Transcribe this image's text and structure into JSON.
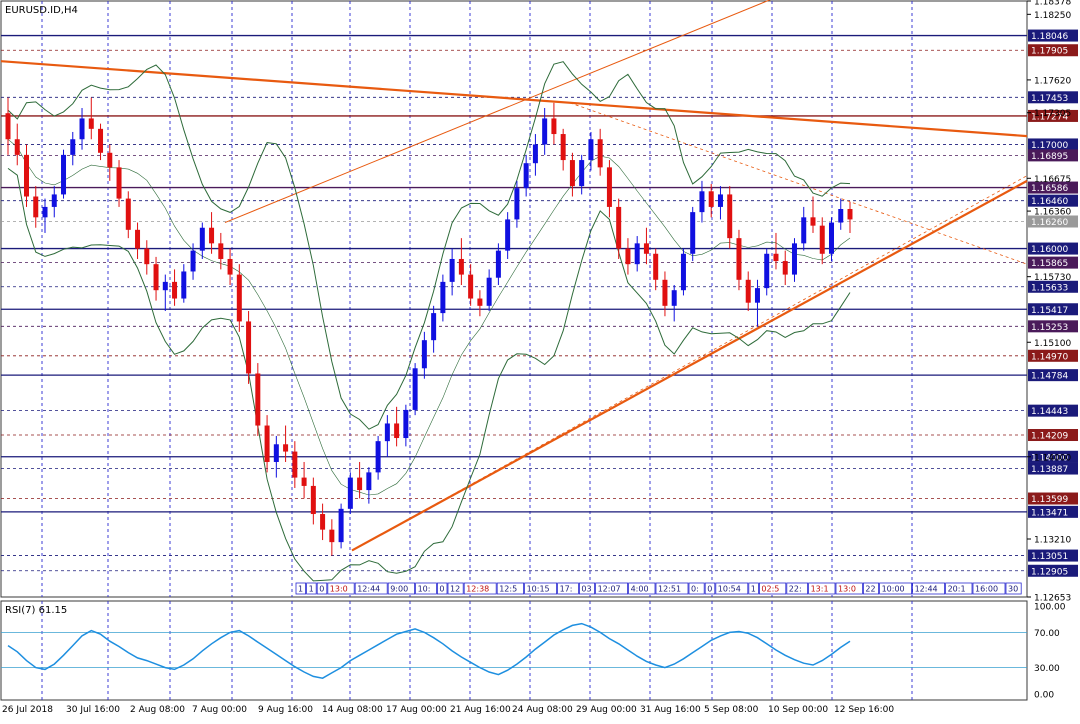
{
  "chart_data": {
    "type": "candlestick",
    "title": "EURUSD.ID,H4",
    "symbol": "EURUSD.ID",
    "timeframe": "H4",
    "y_range": [
      1.12653,
      1.18378
    ],
    "price_ticks": [
      {
        "label": "1.18378"
      },
      {
        "label": "1.18250"
      },
      {
        "label": "1.17620"
      },
      {
        "label": "1.17305"
      },
      {
        "label": "1.16675"
      },
      {
        "label": "1.16360"
      },
      {
        "label": "1.15730"
      },
      {
        "label": "1.15100"
      },
      {
        "label": "1.14000"
      },
      {
        "label": "1.13210"
      },
      {
        "label": "1.12653"
      }
    ],
    "price_levels": [
      {
        "label": "1.18046",
        "color": "#1a1a7a"
      },
      {
        "label": "1.17905",
        "color": "#8b1a1a"
      },
      {
        "label": "1.17453",
        "color": "#1a1a7a"
      },
      {
        "label": "1.17274",
        "color": "#8b1a1a"
      },
      {
        "label": "1.17000",
        "color": "#1a1a7a"
      },
      {
        "label": "1.16895",
        "color": "#4a1a5a"
      },
      {
        "label": "1.16586",
        "color": "#4a1a5a"
      },
      {
        "label": "1.16460",
        "color": "#1a1a7a"
      },
      {
        "label": "1.16260",
        "color": "#9a9a9a"
      },
      {
        "label": "1.16000",
        "color": "#1a1a7a"
      },
      {
        "label": "1.15865",
        "color": "#4a1a5a"
      },
      {
        "label": "1.15633",
        "color": "#1a1a7a"
      },
      {
        "label": "1.15417",
        "color": "#1a1a7a"
      },
      {
        "label": "1.15253",
        "color": "#4a1a5a"
      },
      {
        "label": "1.14970",
        "color": "#8b1a1a"
      },
      {
        "label": "1.14784",
        "color": "#1a1a7a"
      },
      {
        "label": "1.14443",
        "color": "#1a1a7a"
      },
      {
        "label": "1.14209",
        "color": "#8b1a1a"
      },
      {
        "label": "1.14000",
        "color": "#1a1a7a"
      },
      {
        "label": "1.13887",
        "color": "#1a1a7a"
      },
      {
        "label": "1.13599",
        "color": "#8b1a1a"
      },
      {
        "label": "1.13471",
        "color": "#1a1a7a"
      },
      {
        "label": "1.13051",
        "color": "#1a1a7a"
      },
      {
        "label": "1.12905",
        "color": "#1a1a7a"
      }
    ],
    "x_labels": [
      "26 Jul 2018",
      "30 Jul 16:00",
      "2 Aug 08:00",
      "7 Aug 00:00",
      "9 Aug 16:00",
      "14 Aug 08:00",
      "17 Aug 00:00",
      "21 Aug 16:00",
      "24 Aug 08:00",
      "29 Aug 00:00",
      "31 Aug 16:00",
      "5 Sep 08:00",
      "10 Sep 00:00",
      "12 Sep 16:00"
    ],
    "time_markers": [
      "1",
      "1",
      "0",
      "13:0",
      "12:44",
      "9:00",
      "10:",
      "0",
      "12",
      "12:38",
      "12:5",
      "10:15",
      "17:",
      "03",
      "12:07",
      "4:00",
      "12:51",
      "0:",
      "0",
      "10:54",
      "1",
      "02:5",
      "22:",
      "13:1",
      "13:0",
      "22",
      "10:00",
      "12:44",
      "20:1",
      "16:00",
      "30"
    ],
    "candles": [
      [
        1.173,
        1.1745,
        1.169,
        1.1705
      ],
      [
        1.1705,
        1.172,
        1.168,
        1.169
      ],
      [
        1.169,
        1.17,
        1.164,
        1.165
      ],
      [
        1.165,
        1.166,
        1.162,
        1.163
      ],
      [
        1.163,
        1.1648,
        1.1615,
        1.164
      ],
      [
        1.164,
        1.166,
        1.163,
        1.1652
      ],
      [
        1.1652,
        1.1695,
        1.1648,
        1.169
      ],
      [
        1.169,
        1.1712,
        1.168,
        1.1705
      ],
      [
        1.1705,
        1.1735,
        1.1695,
        1.1725
      ],
      [
        1.1725,
        1.1745,
        1.1705,
        1.1715
      ],
      [
        1.1715,
        1.172,
        1.1685,
        1.1692
      ],
      [
        1.1692,
        1.17,
        1.1665,
        1.1678
      ],
      [
        1.1678,
        1.1685,
        1.164,
        1.1648
      ],
      [
        1.1648,
        1.1655,
        1.161,
        1.1618
      ],
      [
        1.1618,
        1.1625,
        1.159,
        1.16
      ],
      [
        1.16,
        1.1608,
        1.1575,
        1.1585
      ],
      [
        1.1585,
        1.1592,
        1.155,
        1.156
      ],
      [
        1.156,
        1.1575,
        1.154,
        1.1568
      ],
      [
        1.1568,
        1.158,
        1.1545,
        1.1552
      ],
      [
        1.1552,
        1.1585,
        1.1548,
        1.1578
      ],
      [
        1.1578,
        1.1605,
        1.157,
        1.1598
      ],
      [
        1.1598,
        1.1625,
        1.159,
        1.162
      ],
      [
        1.162,
        1.1635,
        1.1595,
        1.1605
      ],
      [
        1.1605,
        1.1615,
        1.158,
        1.159
      ],
      [
        1.159,
        1.16,
        1.1565,
        1.1575
      ],
      [
        1.1575,
        1.1585,
        1.152,
        1.153
      ],
      [
        1.153,
        1.154,
        1.147,
        1.148
      ],
      [
        1.148,
        1.149,
        1.142,
        1.143
      ],
      [
        1.143,
        1.144,
        1.1385,
        1.1395
      ],
      [
        1.1395,
        1.142,
        1.138,
        1.1412
      ],
      [
        1.1412,
        1.143,
        1.1395,
        1.1405
      ],
      [
        1.1405,
        1.1415,
        1.137,
        1.138
      ],
      [
        1.138,
        1.1395,
        1.136,
        1.1372
      ],
      [
        1.1372,
        1.138,
        1.1335,
        1.1345
      ],
      [
        1.1345,
        1.1355,
        1.132,
        1.133
      ],
      [
        1.133,
        1.134,
        1.1305,
        1.1318
      ],
      [
        1.1318,
        1.1355,
        1.1312,
        1.135
      ],
      [
        1.135,
        1.1385,
        1.1345,
        1.138
      ],
      [
        1.138,
        1.1395,
        1.136,
        1.1368
      ],
      [
        1.1368,
        1.139,
        1.1355,
        1.1385
      ],
      [
        1.1385,
        1.142,
        1.1378,
        1.1415
      ],
      [
        1.1415,
        1.144,
        1.14,
        1.1432
      ],
      [
        1.1432,
        1.1448,
        1.141,
        1.1418
      ],
      [
        1.1418,
        1.145,
        1.141,
        1.1445
      ],
      [
        1.1445,
        1.149,
        1.144,
        1.1485
      ],
      [
        1.1485,
        1.152,
        1.1475,
        1.1512
      ],
      [
        1.1512,
        1.1545,
        1.15,
        1.1538
      ],
      [
        1.1538,
        1.1575,
        1.153,
        1.1568
      ],
      [
        1.1568,
        1.16,
        1.1555,
        1.159
      ],
      [
        1.159,
        1.161,
        1.1565,
        1.1575
      ],
      [
        1.1575,
        1.1585,
        1.1545,
        1.1552
      ],
      [
        1.1552,
        1.156,
        1.1535,
        1.1545
      ],
      [
        1.1545,
        1.158,
        1.154,
        1.1572
      ],
      [
        1.1572,
        1.1605,
        1.1565,
        1.1598
      ],
      [
        1.1598,
        1.1635,
        1.159,
        1.1628
      ],
      [
        1.1628,
        1.1665,
        1.162,
        1.1658
      ],
      [
        1.1658,
        1.169,
        1.165,
        1.1682
      ],
      [
        1.1682,
        1.171,
        1.167,
        1.17
      ],
      [
        1.17,
        1.1735,
        1.169,
        1.1725
      ],
      [
        1.1725,
        1.174,
        1.17,
        1.171
      ],
      [
        1.171,
        1.1715,
        1.1675,
        1.1685
      ],
      [
        1.1685,
        1.1692,
        1.165,
        1.166
      ],
      [
        1.166,
        1.169,
        1.1652,
        1.1685
      ],
      [
        1.1685,
        1.1712,
        1.1675,
        1.1705
      ],
      [
        1.1705,
        1.1715,
        1.167,
        1.1678
      ],
      [
        1.1678,
        1.1685,
        1.163,
        1.164
      ],
      [
        1.164,
        1.1648,
        1.159,
        1.16
      ],
      [
        1.16,
        1.161,
        1.1575,
        1.1585
      ],
      [
        1.1585,
        1.1612,
        1.1578,
        1.1605
      ],
      [
        1.1605,
        1.162,
        1.1585,
        1.1595
      ],
      [
        1.1595,
        1.16,
        1.156,
        1.157
      ],
      [
        1.157,
        1.1578,
        1.1535,
        1.1545
      ],
      [
        1.1545,
        1.1565,
        1.153,
        1.156
      ],
      [
        1.156,
        1.16,
        1.1555,
        1.1595
      ],
      [
        1.1595,
        1.164,
        1.1588,
        1.1635
      ],
      [
        1.1635,
        1.1665,
        1.1625,
        1.1655
      ],
      [
        1.1655,
        1.1662,
        1.163,
        1.164
      ],
      [
        1.164,
        1.166,
        1.1628,
        1.1652
      ],
      [
        1.1652,
        1.166,
        1.16,
        1.161
      ],
      [
        1.161,
        1.1618,
        1.156,
        1.157
      ],
      [
        1.157,
        1.1578,
        1.154,
        1.1548
      ],
      [
        1.1548,
        1.157,
        1.1525,
        1.1562
      ],
      [
        1.1562,
        1.16,
        1.1555,
        1.1595
      ],
      [
        1.1595,
        1.1615,
        1.158,
        1.1588
      ],
      [
        1.1588,
        1.1598,
        1.1565,
        1.1575
      ],
      [
        1.1575,
        1.161,
        1.1568,
        1.1605
      ],
      [
        1.1605,
        1.164,
        1.1598,
        1.163
      ],
      [
        1.163,
        1.165,
        1.1615,
        1.1622
      ],
      [
        1.1622,
        1.163,
        1.1585,
        1.1595
      ],
      [
        1.1595,
        1.163,
        1.1588,
        1.1625
      ],
      [
        1.1625,
        1.1648,
        1.1618,
        1.1638
      ],
      [
        1.1638,
        1.1645,
        1.1615,
        1.1628
      ]
    ],
    "rsi": {
      "label": "RSI(7) 61.15",
      "levels": {
        "upper": 70,
        "lower": 30
      },
      "axis_labels": [
        "100.00",
        "70.00",
        "30.00",
        "0.00"
      ],
      "values": [
        55,
        48,
        38,
        30,
        28,
        34,
        44,
        55,
        66,
        72,
        68,
        60,
        54,
        47,
        41,
        38,
        34,
        30,
        28,
        33,
        40,
        49,
        57,
        64,
        70,
        72,
        66,
        59,
        52,
        45,
        38,
        31,
        25,
        20,
        18,
        24,
        30,
        38,
        44,
        50,
        56,
        62,
        68,
        71,
        74,
        70,
        64,
        57,
        49,
        42,
        36,
        30,
        25,
        22,
        27,
        34,
        42,
        51,
        59,
        67,
        73,
        78,
        80,
        76,
        70,
        63,
        57,
        50,
        43,
        37,
        33,
        30,
        34,
        40,
        47,
        54,
        61,
        66,
        70,
        71,
        69,
        64,
        57,
        50,
        44,
        39,
        35,
        33,
        38,
        45,
        53,
        60
      ]
    }
  }
}
